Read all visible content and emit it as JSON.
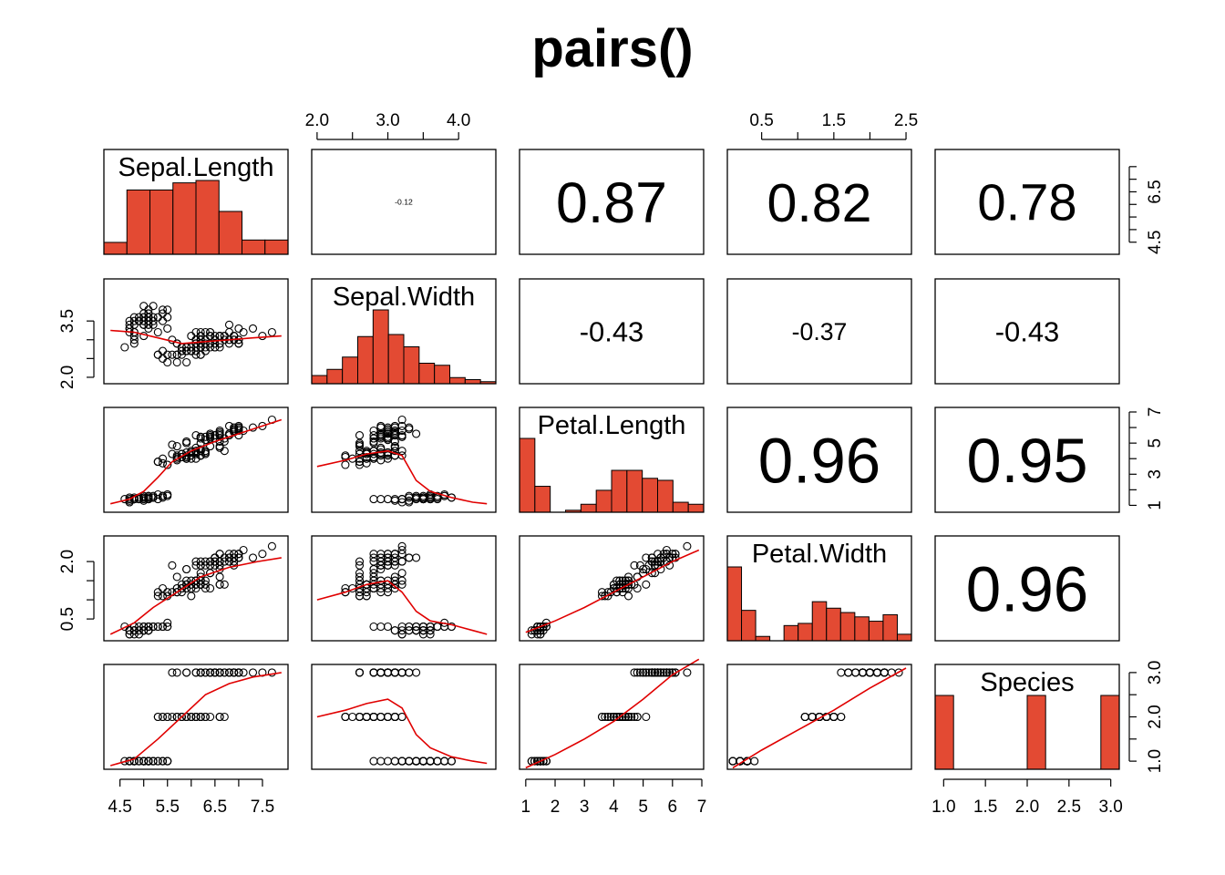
{
  "title": "pairs()",
  "colors": {
    "hist_fill": "#E34A33",
    "smooth_line": "#E00000",
    "points": "#000000"
  },
  "chart_data": {
    "type": "scatter",
    "matrix": "pairs",
    "variables": [
      {
        "name": "Sepal.Length",
        "lim": [
          4.2,
          8.0
        ]
      },
      {
        "name": "Sepal.Width",
        "lim": [
          1.95,
          4.5
        ]
      },
      {
        "name": "Petal.Length",
        "lim": [
          0.85,
          7.0
        ]
      },
      {
        "name": "Petal.Width",
        "lim": [
          0.05,
          2.55
        ]
      },
      {
        "name": "Species",
        "lim": [
          0.92,
          3.08
        ]
      }
    ],
    "tick_axes": [
      {
        "var": 1,
        "side": "top",
        "ticks": [
          2.0,
          2.5,
          3.0,
          3.5,
          4.0
        ],
        "labels": [
          "2.0",
          "3.0",
          "4.0"
        ]
      },
      {
        "var": 3,
        "side": "top",
        "ticks": [
          0.5,
          1.0,
          1.5,
          2.0,
          2.5
        ],
        "labels": [
          "0.5",
          "1.5",
          "2.5"
        ]
      },
      {
        "var": 0,
        "side": "bottom",
        "ticks": [
          4.5,
          5.0,
          5.5,
          6.0,
          6.5,
          7.0,
          7.5
        ],
        "labels": [
          "4.5",
          "5.5",
          "6.5",
          "7.5"
        ]
      },
      {
        "var": 2,
        "side": "bottom",
        "ticks": [
          1,
          2,
          3,
          4,
          5,
          6,
          7
        ],
        "labels": [
          "1",
          "2",
          "3",
          "4",
          "5",
          "6",
          "7"
        ]
      },
      {
        "var": 4,
        "side": "bottom",
        "ticks": [
          1.0,
          1.5,
          2.0,
          2.5,
          3.0
        ],
        "labels": [
          "1.0",
          "1.5",
          "2.0",
          "2.5",
          "3.0"
        ]
      },
      {
        "var": 1,
        "side": "left",
        "ticks": [
          2.0,
          2.5,
          3.0,
          3.5
        ],
        "labels": [
          "2.0",
          "3.5"
        ]
      },
      {
        "var": 3,
        "side": "left",
        "ticks": [
          0.5,
          1.0,
          1.5,
          2.0
        ],
        "labels": [
          "0.5",
          "2.0"
        ]
      },
      {
        "var": 0,
        "side": "right",
        "ticks": [
          4.5,
          5.0,
          5.5,
          6.0,
          6.5,
          7.0,
          7.5
        ],
        "labels": [
          "4.5",
          "6.5"
        ]
      },
      {
        "var": 2,
        "side": "right",
        "ticks": [
          1,
          2,
          3,
          4,
          5,
          6,
          7
        ],
        "labels": [
          "1",
          "3",
          "5",
          "7"
        ]
      },
      {
        "var": 4,
        "side": "right",
        "ticks": [
          1.0,
          1.5,
          2.0,
          2.5,
          3.0
        ],
        "labels": [
          "1.0",
          "2.0",
          "3.0"
        ]
      }
    ],
    "histograms": [
      {
        "var": 0,
        "breaks": [
          4.0,
          4.5,
          5.0,
          5.5,
          6.0,
          6.5,
          7.0,
          7.5,
          8.0
        ],
        "counts": [
          5,
          27,
          27,
          30,
          31,
          18,
          6,
          6
        ]
      },
      {
        "var": 1,
        "breaks": [
          2.0,
          2.2,
          2.4,
          2.6,
          2.8,
          3.0,
          3.2,
          3.4,
          3.6,
          3.8,
          4.0,
          4.2,
          4.4
        ],
        "counts": [
          4,
          7,
          13,
          23,
          36,
          24,
          18,
          10,
          9,
          3,
          2,
          1
        ]
      },
      {
        "var": 2,
        "breaks": [
          1.0,
          1.5,
          2.0,
          2.5,
          3.0,
          3.5,
          4.0,
          4.5,
          5.0,
          5.5,
          6.0,
          6.5,
          7.0
        ],
        "counts": [
          37,
          13,
          0,
          1,
          4,
          11,
          21,
          21,
          17,
          16,
          5,
          4
        ]
      },
      {
        "var": 3,
        "breaks": [
          0.0,
          0.2,
          0.4,
          0.6,
          0.8,
          1.0,
          1.2,
          1.4,
          1.6,
          1.8,
          2.0,
          2.2,
          2.4,
          2.6
        ],
        "counts": [
          34,
          14,
          2,
          0,
          7,
          8,
          18,
          15,
          13,
          11,
          9,
          12,
          3
        ]
      },
      {
        "var": 4,
        "breaks": [
          1.0,
          1.2,
          1.4,
          1.6,
          1.8,
          2.0,
          2.2,
          2.4,
          2.6,
          2.8,
          3.0
        ],
        "counts": [
          50,
          0,
          0,
          0,
          0,
          50,
          0,
          0,
          0,
          50
        ]
      }
    ],
    "correlations": [
      {
        "row": 0,
        "col": 1,
        "value": "-0.12"
      },
      {
        "row": 0,
        "col": 2,
        "value": "0.87"
      },
      {
        "row": 0,
        "col": 3,
        "value": "0.82"
      },
      {
        "row": 0,
        "col": 4,
        "value": "0.78"
      },
      {
        "row": 1,
        "col": 2,
        "value": "-0.43"
      },
      {
        "row": 1,
        "col": 3,
        "value": "-0.37"
      },
      {
        "row": 1,
        "col": 4,
        "value": "-0.43"
      },
      {
        "row": 2,
        "col": 3,
        "value": "0.96"
      },
      {
        "row": 2,
        "col": 4,
        "value": "0.95"
      },
      {
        "row": 3,
        "col": 4,
        "value": "0.96"
      }
    ],
    "smoothers": [
      {
        "row": 1,
        "col": 0,
        "points": [
          [
            4.3,
            3.25
          ],
          [
            4.8,
            3.2
          ],
          [
            5.3,
            3.05
          ],
          [
            5.8,
            2.9
          ],
          [
            6.3,
            2.95
          ],
          [
            6.8,
            3.0
          ],
          [
            7.3,
            3.05
          ],
          [
            7.9,
            3.1
          ]
        ]
      },
      {
        "row": 2,
        "col": 0,
        "points": [
          [
            4.3,
            1.1
          ],
          [
            4.7,
            1.4
          ],
          [
            5.0,
            1.9
          ],
          [
            5.3,
            2.8
          ],
          [
            5.6,
            3.8
          ],
          [
            6.0,
            4.5
          ],
          [
            6.5,
            5.1
          ],
          [
            7.0,
            5.6
          ],
          [
            7.5,
            6.1
          ],
          [
            7.9,
            6.5
          ]
        ]
      },
      {
        "row": 2,
        "col": 1,
        "points": [
          [
            2.0,
            3.5
          ],
          [
            2.4,
            3.9
          ],
          [
            2.7,
            4.3
          ],
          [
            3.0,
            4.5
          ],
          [
            3.2,
            4.2
          ],
          [
            3.4,
            2.6
          ],
          [
            3.6,
            1.9
          ],
          [
            3.9,
            1.5
          ],
          [
            4.2,
            1.2
          ],
          [
            4.4,
            1.1
          ]
        ]
      },
      {
        "row": 3,
        "col": 0,
        "points": [
          [
            4.3,
            0.1
          ],
          [
            4.8,
            0.4
          ],
          [
            5.2,
            0.8
          ],
          [
            5.7,
            1.2
          ],
          [
            6.2,
            1.6
          ],
          [
            6.8,
            1.85
          ],
          [
            7.4,
            2.0
          ],
          [
            7.9,
            2.1
          ]
        ]
      },
      {
        "row": 3,
        "col": 1,
        "points": [
          [
            2.0,
            1.0
          ],
          [
            2.4,
            1.2
          ],
          [
            2.7,
            1.4
          ],
          [
            3.0,
            1.5
          ],
          [
            3.2,
            1.2
          ],
          [
            3.4,
            0.7
          ],
          [
            3.6,
            0.45
          ],
          [
            3.9,
            0.35
          ],
          [
            4.2,
            0.2
          ],
          [
            4.4,
            0.1
          ]
        ]
      },
      {
        "row": 3,
        "col": 2,
        "points": [
          [
            1.0,
            0.15
          ],
          [
            2.0,
            0.45
          ],
          [
            3.0,
            0.8
          ],
          [
            4.0,
            1.2
          ],
          [
            5.0,
            1.6
          ],
          [
            6.0,
            2.0
          ],
          [
            6.9,
            2.3
          ]
        ]
      },
      {
        "row": 4,
        "col": 0,
        "points": [
          [
            4.3,
            0.9
          ],
          [
            4.8,
            1.05
          ],
          [
            5.3,
            1.5
          ],
          [
            5.8,
            2.0
          ],
          [
            6.3,
            2.5
          ],
          [
            6.8,
            2.75
          ],
          [
            7.3,
            2.9
          ],
          [
            7.9,
            3.0
          ]
        ]
      },
      {
        "row": 4,
        "col": 1,
        "points": [
          [
            2.0,
            2.0
          ],
          [
            2.4,
            2.15
          ],
          [
            2.7,
            2.3
          ],
          [
            3.0,
            2.4
          ],
          [
            3.2,
            2.2
          ],
          [
            3.4,
            1.6
          ],
          [
            3.6,
            1.3
          ],
          [
            3.9,
            1.1
          ],
          [
            4.2,
            1.0
          ],
          [
            4.4,
            0.95
          ]
        ]
      },
      {
        "row": 4,
        "col": 2,
        "points": [
          [
            1.0,
            0.85
          ],
          [
            2.0,
            1.15
          ],
          [
            3.0,
            1.5
          ],
          [
            4.0,
            1.9
          ],
          [
            5.0,
            2.4
          ],
          [
            6.0,
            2.95
          ],
          [
            6.9,
            3.3
          ]
        ]
      },
      {
        "row": 4,
        "col": 3,
        "points": [
          [
            0.1,
            0.85
          ],
          [
            0.5,
            1.25
          ],
          [
            1.0,
            1.7
          ],
          [
            1.5,
            2.15
          ],
          [
            2.0,
            2.65
          ],
          [
            2.5,
            3.1
          ]
        ]
      }
    ],
    "grid": false,
    "legend": "none"
  }
}
